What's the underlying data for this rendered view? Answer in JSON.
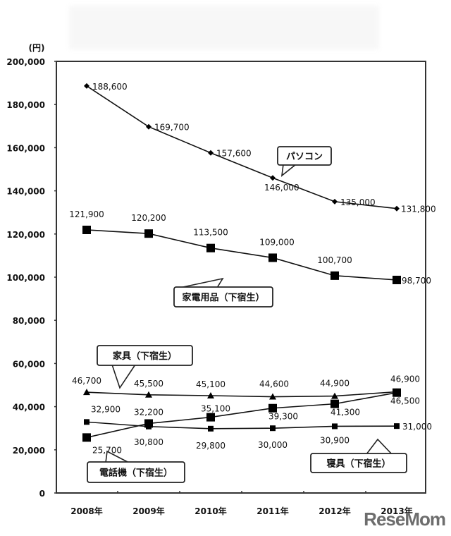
{
  "watermark": "ReseMom",
  "chart_data": {
    "type": "line",
    "title": "",
    "xlabel": "",
    "ylabel": "(円)",
    "ylim": [
      0,
      200000
    ],
    "yticks": [
      0,
      20000,
      40000,
      60000,
      80000,
      100000,
      120000,
      140000,
      160000,
      180000,
      200000
    ],
    "ytick_labels": [
      "0",
      "20,000",
      "40,000",
      "60,000",
      "80,000",
      "100,000",
      "120,000",
      "140,000",
      "160,000",
      "180,000",
      "200,000"
    ],
    "categories": [
      "2008年",
      "2009年",
      "2010年",
      "2011年",
      "2012年",
      "2013年"
    ],
    "grid": false,
    "legend_position": "callouts",
    "series": [
      {
        "name": "パソコン",
        "marker": "diamond",
        "values": [
          188600,
          169700,
          157600,
          146000,
          135000,
          131800
        ],
        "labels": [
          "188,600",
          "169,700",
          "157,600",
          "146,000",
          "135,000",
          "131,800"
        ]
      },
      {
        "name": "家電用品（下宿生）",
        "marker": "square-large",
        "values": [
          121900,
          120200,
          113500,
          109000,
          100700,
          98700
        ],
        "labels": [
          "121,900",
          "120,200",
          "113,500",
          "109,000",
          "100,700",
          "98,700"
        ]
      },
      {
        "name": "家具（下宿生）",
        "marker": "triangle",
        "values": [
          46700,
          45500,
          45100,
          44600,
          44900,
          46900
        ],
        "labels": [
          "46,700",
          "45,500",
          "45,100",
          "44,600",
          "44,900",
          "46,900"
        ]
      },
      {
        "name": "電話機（下宿生）",
        "marker": "square-large",
        "values": [
          25700,
          32200,
          35100,
          39300,
          41300,
          46500
        ],
        "labels": [
          "25,700",
          "32,200",
          "35,100",
          "39,300",
          "41,300",
          "46,500"
        ]
      },
      {
        "name": "寝具（下宿生）",
        "marker": "square-small",
        "values": [
          32900,
          30800,
          29800,
          30000,
          30900,
          31000
        ],
        "labels": [
          "32,900",
          "30,800",
          "29,800",
          "30,000",
          "30,900",
          "31,000"
        ]
      }
    ],
    "callouts": [
      {
        "series": "パソコン",
        "text": "パソコン"
      },
      {
        "series": "家電用品（下宿生）",
        "text": "家電用品（下宿生）"
      },
      {
        "series": "家具（下宿生）",
        "text": "家具（下宿生）"
      },
      {
        "series": "電話機（下宿生）",
        "text": "電話機（下宿生）"
      },
      {
        "series": "寝具（下宿生）",
        "text": "寝具（下宿生）"
      }
    ]
  }
}
